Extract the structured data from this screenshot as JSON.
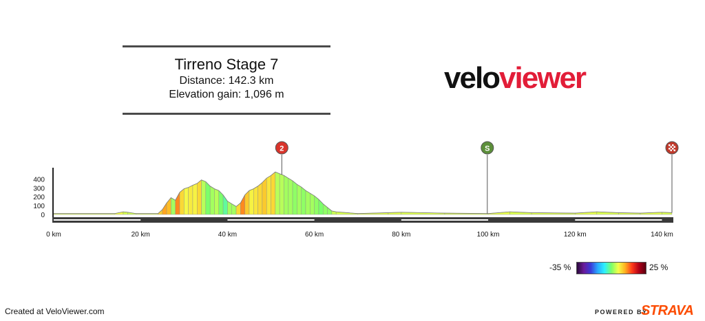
{
  "header": {
    "title": "Tirreno Stage 7",
    "distance": "Distance: 142.3 km",
    "elevation_gain": "Elevation gain: 1,096 m"
  },
  "logo": {
    "part1": "velo",
    "part2": "viewer",
    "part2_color": "#e21d38"
  },
  "markers": [
    {
      "km": 52.5,
      "label": "2",
      "kind": "climb",
      "color": "#d9342b"
    },
    {
      "km": 99.8,
      "label": "S",
      "kind": "sprint",
      "color": "#5c8f3a"
    },
    {
      "km": 142.3,
      "label": "",
      "kind": "finish",
      "color": "#c0392b"
    }
  ],
  "chart_data": {
    "type": "area",
    "title": "",
    "xlabel": "",
    "ylabel": "",
    "x_unit": "km",
    "xlim": [
      0,
      142.3
    ],
    "ylim": [
      0,
      450
    ],
    "x_ticks": [
      0,
      20,
      40,
      60,
      80,
      100,
      120,
      140
    ],
    "x_tick_labels": [
      "0 km",
      "20 km",
      "40 km",
      "60 km",
      "80 km",
      "100 km",
      "120 km",
      "140 km"
    ],
    "y_ticks": [
      0,
      100,
      200,
      300,
      400
    ],
    "y_tick_labels": [
      "0",
      "100",
      "200",
      "300",
      "400"
    ],
    "grid": false,
    "colored_by": "gradient",
    "elevation_profile": {
      "distance_km": [
        0,
        14,
        16,
        17,
        19,
        24,
        25,
        26,
        27,
        28,
        29,
        30,
        31,
        32,
        33,
        34,
        35,
        36,
        37,
        38,
        39,
        40,
        41,
        42,
        43,
        44,
        45,
        46,
        47,
        48,
        49,
        50,
        51,
        52,
        53,
        54,
        55,
        56,
        57,
        58,
        59,
        60,
        61,
        62,
        63,
        64,
        65,
        70,
        77,
        80,
        90,
        100,
        105,
        110,
        120,
        125,
        130,
        135,
        140,
        142.3
      ],
      "elevation_m": [
        10,
        10,
        30,
        25,
        10,
        10,
        55,
        130,
        190,
        160,
        250,
        290,
        305,
        330,
        350,
        390,
        370,
        320,
        290,
        270,
        220,
        150,
        120,
        90,
        130,
        220,
        270,
        290,
        320,
        360,
        410,
        440,
        480,
        460,
        440,
        410,
        380,
        340,
        310,
        270,
        240,
        210,
        170,
        120,
        80,
        40,
        30,
        10,
        20,
        25,
        15,
        10,
        30,
        20,
        15,
        30,
        20,
        15,
        25,
        20
      ]
    },
    "gradient_scale": {
      "min_label": "-35 %",
      "max_label": "25 %",
      "min": -35,
      "max": 25,
      "colors": [
        "#2a0a3a",
        "#6a1b9a",
        "#3a3ad8",
        "#2aa8ff",
        "#2cf0ff",
        "#7bff6a",
        "#f4ff4a",
        "#ffb020",
        "#ff3a1a",
        "#b00018",
        "#5a0010"
      ]
    }
  },
  "legend": {
    "min_label": "-35 %",
    "max_label": "25 %"
  },
  "footer": {
    "created": "Created at VeloViewer.com",
    "powered": "POWERED BY",
    "strava": "STRAVA"
  }
}
